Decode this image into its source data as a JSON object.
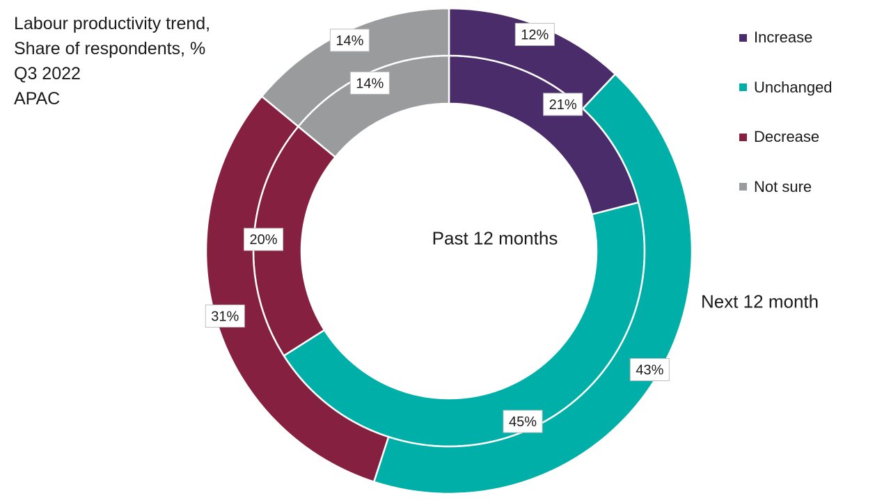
{
  "chart_data": {
    "type": "donut",
    "title_lines": [
      "Labour productivity trend,",
      "Share of respondents, %",
      "Q3 2022",
      "APAC"
    ],
    "categories": [
      "Increase",
      "Unchanged",
      "Decrease",
      "Not sure"
    ],
    "colors": {
      "Increase": "#4b2c6b",
      "Unchanged": "#00b0a8",
      "Decrease": "#862040",
      "Not sure": "#9a9b9d"
    },
    "series": [
      {
        "name": "Past 12 months",
        "ring": "inner",
        "values": [
          21,
          45,
          20,
          14
        ],
        "labels": [
          "21%",
          "45%",
          "20%",
          "14%"
        ]
      },
      {
        "name": "Next 12 month",
        "ring": "outer",
        "values": [
          12,
          43,
          31,
          14
        ],
        "labels": [
          "12%",
          "43%",
          "31%",
          "14%"
        ]
      }
    ],
    "legend": {
      "position": "top-right",
      "items": [
        "Increase",
        "Unchanged",
        "Decrease",
        "Not sure"
      ]
    },
    "unit": "%"
  }
}
